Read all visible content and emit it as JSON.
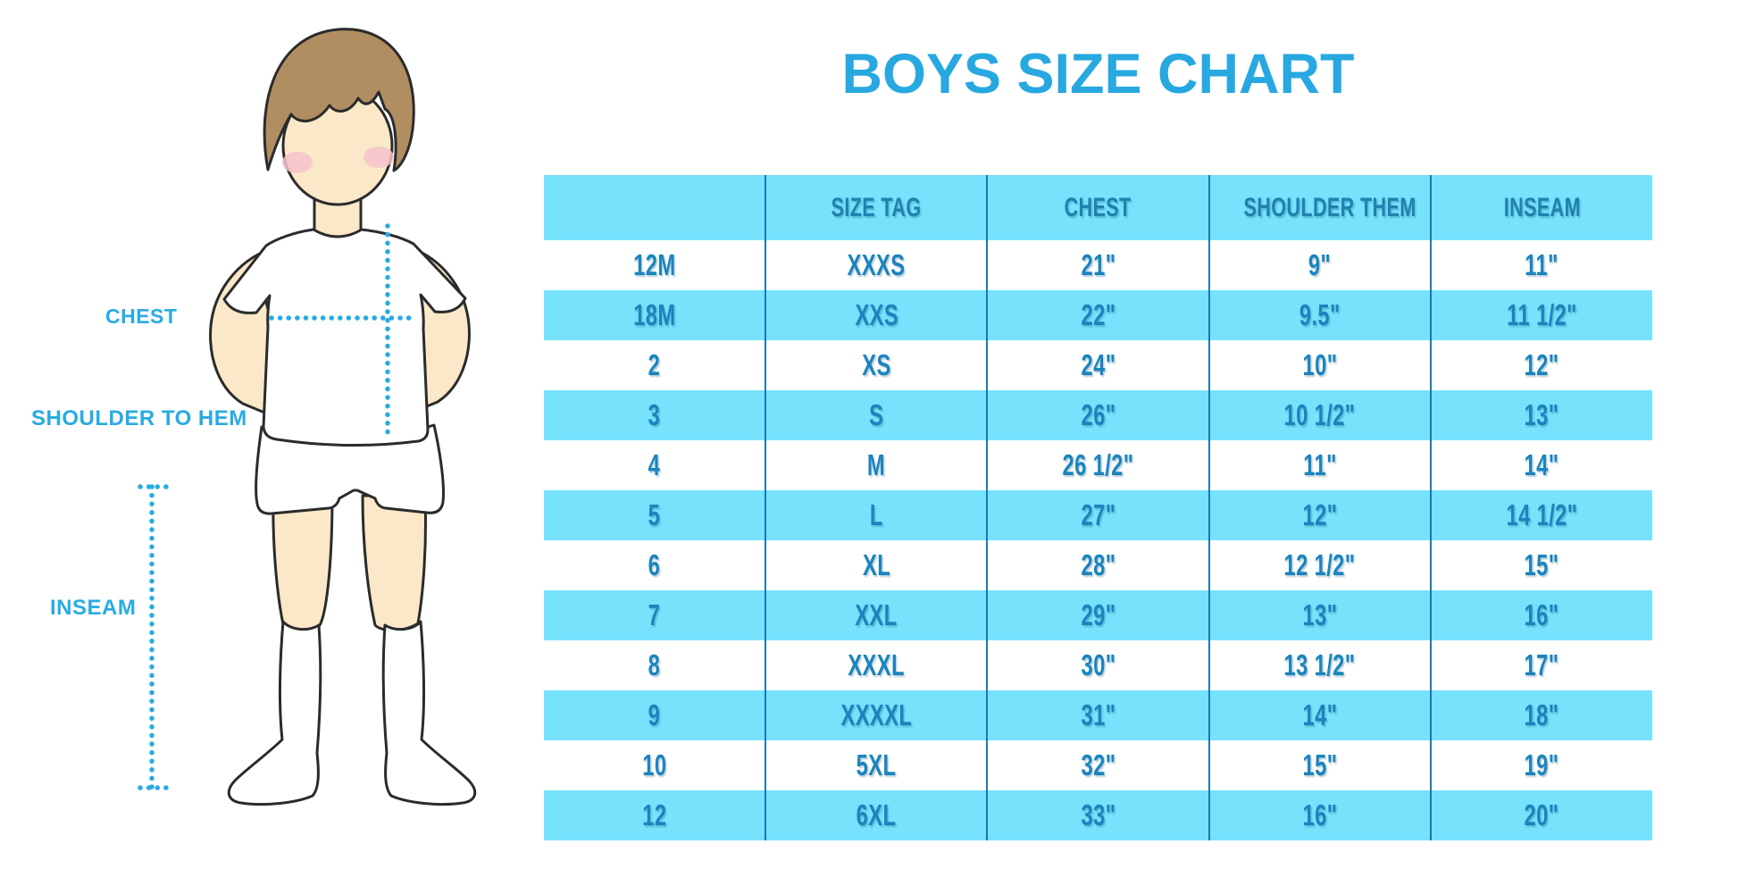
{
  "title": "BOYS SIZE CHART",
  "figure": {
    "labels": {
      "chest": "CHEST",
      "shoulder_to_hem": "SHOULDER TO HEM",
      "inseam": "INSEAM"
    }
  },
  "chart_data": {
    "type": "table",
    "title": "BOYS SIZE CHART",
    "columns": [
      "",
      "SIZE TAG",
      "CHEST",
      "SHOULDER THEM",
      "INSEAM"
    ],
    "rows": [
      [
        "12M",
        "XXXS",
        "21\"",
        "9\"",
        "11\""
      ],
      [
        "18M",
        "XXS",
        "22\"",
        "9.5\"",
        "11 1/2\""
      ],
      [
        "2",
        "XS",
        "24\"",
        "10\"",
        "12\""
      ],
      [
        "3",
        "S",
        "26\"",
        "10 1/2\"",
        "13\""
      ],
      [
        "4",
        "M",
        "26 1/2\"",
        "11\"",
        "14\""
      ],
      [
        "5",
        "L",
        "27\"",
        "12\"",
        "14 1/2\""
      ],
      [
        "6",
        "XL",
        "28\"",
        "12 1/2\"",
        "15\""
      ],
      [
        "7",
        "XXL",
        "29\"",
        "13\"",
        "16\""
      ],
      [
        "8",
        "XXXL",
        "30\"",
        "13 1/2\"",
        "17\""
      ],
      [
        "9",
        "XXXXL",
        "31\"",
        "14\"",
        "18\""
      ],
      [
        "10",
        "5XL",
        "32\"",
        "15\"",
        "19\""
      ],
      [
        "12",
        "6XL",
        "33\"",
        "16\"",
        "20\""
      ]
    ],
    "layout_hints": {
      "row_striping": "white / cyan alternating, header cyan",
      "grid": "vertical column dividers only"
    }
  },
  "colors": {
    "title_blue": "#28A8E0",
    "label_blue": "#29ABE2",
    "row_cyan": "#76E2FB",
    "divider_blue": "#1879B3",
    "cell_text_blue": "#1B84BE",
    "header_text_blue": "#1F82AE",
    "skin": "#FBE8C8",
    "hair_brown": "#B18E61",
    "blush_pink": "#F5C2CB",
    "outline_dark": "#2B2B2B",
    "dotted_line_blue": "#29ABE2"
  }
}
